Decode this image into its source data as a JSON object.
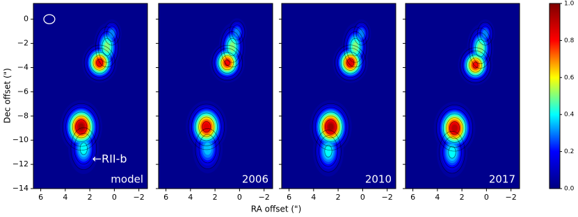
{
  "chart_data": {
    "type": "image",
    "x_label": "RA offset (\")",
    "y_label": "Dec offset (\")",
    "xlim": [
      6.6,
      -2.7
    ],
    "ylim": [
      -14,
      1.3
    ],
    "xticks": [
      6,
      4,
      2,
      0,
      {
        "value": -2,
        "label": "−2"
      }
    ],
    "yticks": [
      0,
      {
        "value": -2,
        "label": "−2"
      },
      {
        "value": -4,
        "label": "−4"
      },
      {
        "value": -6,
        "label": "−6"
      },
      {
        "value": -8,
        "label": "−8"
      },
      {
        "value": -10,
        "label": "−10"
      },
      {
        "value": -12,
        "label": "−12"
      },
      {
        "value": -14,
        "label": "−14"
      }
    ],
    "clim": [
      0,
      1
    ],
    "cticks": [
      {
        "value": 0,
        "label": "0.0"
      },
      {
        "value": 0.2,
        "label": "0.2"
      },
      {
        "value": 0.4,
        "label": "0.4"
      },
      {
        "value": 0.6,
        "label": "0.6"
      },
      {
        "value": 0.8,
        "label": "0.8"
      },
      {
        "value": 1,
        "label": "1.0"
      }
    ],
    "colormap": [
      "#00007f",
      "#0000ff",
      "#00ffff",
      "#ffff00",
      "#ff0000",
      "#7f0000"
    ],
    "contour_levels": [
      0.1,
      0.2,
      0.4,
      0.6,
      0.8
    ],
    "beam": {
      "x": 5.3,
      "y": 0,
      "width": 0.9,
      "height": 0.75
    },
    "annotation": {
      "text": "←RII-b",
      "x": 1.8,
      "y": -11.6
    },
    "panels": [
      {
        "label": "model",
        "components": [
          {
            "x": 1.2,
            "y": -3.6,
            "sx": 0.6,
            "sy": 0.7,
            "peak": 0.88
          },
          {
            "x": 0.6,
            "y": -2.3,
            "sx": 0.5,
            "sy": 0.9,
            "peak": 0.55
          },
          {
            "x": 0.2,
            "y": -1.2,
            "sx": 0.4,
            "sy": 0.6,
            "peak": 0.35
          },
          {
            "x": 2.7,
            "y": -8.9,
            "sx": 0.7,
            "sy": 0.9,
            "peak": 1.0
          },
          {
            "x": 2.5,
            "y": -10.7,
            "sx": 0.6,
            "sy": 1.0,
            "peak": 0.45
          }
        ]
      },
      {
        "label": "2006",
        "components": [
          {
            "x": 1.0,
            "y": -3.6,
            "sx": 0.6,
            "sy": 0.7,
            "peak": 0.85
          },
          {
            "x": 0.6,
            "y": -2.3,
            "sx": 0.5,
            "sy": 0.9,
            "peak": 0.55
          },
          {
            "x": 0.2,
            "y": -1.1,
            "sx": 0.4,
            "sy": 0.6,
            "peak": 0.35
          },
          {
            "x": 2.7,
            "y": -8.9,
            "sx": 0.7,
            "sy": 0.9,
            "peak": 0.9
          },
          {
            "x": 2.6,
            "y": -10.7,
            "sx": 0.6,
            "sy": 1.0,
            "peak": 0.4
          }
        ]
      },
      {
        "label": "2010",
        "components": [
          {
            "x": 1.0,
            "y": -3.6,
            "sx": 0.6,
            "sy": 0.7,
            "peak": 0.9
          },
          {
            "x": 0.6,
            "y": -2.3,
            "sx": 0.5,
            "sy": 0.9,
            "peak": 0.55
          },
          {
            "x": 0.1,
            "y": -1.2,
            "sx": 0.4,
            "sy": 0.6,
            "peak": 0.35
          },
          {
            "x": 2.6,
            "y": -8.9,
            "sx": 0.7,
            "sy": 0.9,
            "peak": 1.0
          },
          {
            "x": 2.8,
            "y": -10.9,
            "sx": 0.6,
            "sy": 1.0,
            "peak": 0.45
          }
        ]
      },
      {
        "label": "2017",
        "components": [
          {
            "x": 0.9,
            "y": -3.8,
            "sx": 0.6,
            "sy": 0.7,
            "peak": 0.85
          },
          {
            "x": 0.5,
            "y": -2.4,
            "sx": 0.5,
            "sy": 0.9,
            "peak": 0.55
          },
          {
            "x": 0.1,
            "y": -1.2,
            "sx": 0.4,
            "sy": 0.6,
            "peak": 0.35
          },
          {
            "x": 2.6,
            "y": -9.0,
            "sx": 0.7,
            "sy": 0.9,
            "peak": 0.95
          },
          {
            "x": 2.8,
            "y": -11.0,
            "sx": 0.6,
            "sy": 1.0,
            "peak": 0.45
          }
        ]
      }
    ]
  }
}
